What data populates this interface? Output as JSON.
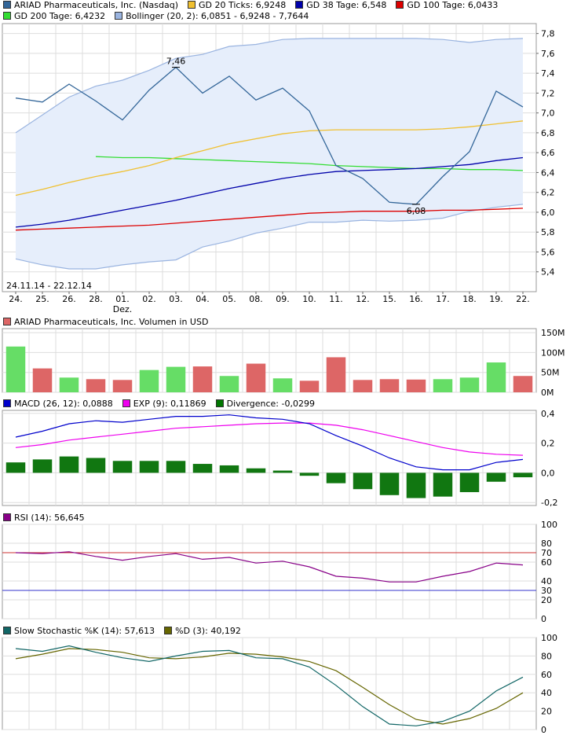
{
  "chart_data": [
    {
      "type": "line",
      "panel": "price",
      "legend": [
        {
          "label": "ARIAD Pharmaceuticals, Inc. (Nasdaq)",
          "color": "#336699"
        },
        {
          "label": "GD 20 Ticks: 6,9248",
          "color": "#f0c030"
        },
        {
          "label": "GD 38 Tage: 6,548",
          "color": "#0000aa"
        },
        {
          "label": "GD 100 Tage: 6,0433",
          "color": "#dd0000"
        },
        {
          "label": "GD 200 Tage: 6,4232",
          "color": "#33dd33"
        },
        {
          "label": "Bollinger (20, 2): 6,0851 - 6,9248 - 7,7644",
          "color": "#9ab4e0"
        }
      ],
      "x": [
        "24.",
        "25.",
        "26.",
        "28.",
        "01.",
        "02.",
        "03.",
        "04.",
        "05.",
        "08.",
        "09.",
        "10.",
        "11.",
        "12.",
        "15.",
        "16.",
        "17.",
        "18.",
        "19.",
        "22."
      ],
      "x_sublabel": {
        "index": 4,
        "text": "Dez."
      },
      "date_range": "24.11.14 - 22.12.14",
      "ylim": [
        5.2,
        7.9
      ],
      "yticks": [
        "7,8",
        "7,6",
        "7,4",
        "7,2",
        "7,0",
        "6,8",
        "6,6",
        "6,4",
        "6,2",
        "6,0",
        "5,8",
        "5,6",
        "5,4"
      ],
      "ytick_values": [
        7.8,
        7.6,
        7.4,
        7.2,
        7.0,
        6.8,
        6.6,
        6.4,
        6.2,
        6.0,
        5.8,
        5.6,
        5.4
      ],
      "series": [
        {
          "name": "ARIAD Pharmaceuticals, Inc. (Nasdaq)",
          "color": "#336699",
          "values": [
            7.15,
            7.11,
            7.29,
            7.12,
            6.93,
            7.23,
            7.46,
            7.2,
            7.37,
            7.13,
            7.25,
            7.02,
            6.47,
            6.34,
            6.1,
            6.08,
            6.36,
            6.61,
            7.22,
            7.06
          ]
        },
        {
          "name": "GD 20 Ticks: 6,9248",
          "color": "#f0c030",
          "values": [
            6.17,
            6.23,
            6.3,
            6.36,
            6.41,
            6.47,
            6.55,
            6.62,
            6.69,
            6.74,
            6.79,
            6.82,
            6.83,
            6.83,
            6.83,
            6.83,
            6.84,
            6.86,
            6.89,
            6.92
          ]
        },
        {
          "name": "GD 38 Tage: 6,548",
          "color": "#0000aa",
          "values": [
            5.85,
            5.88,
            5.92,
            5.97,
            6.02,
            6.07,
            6.12,
            6.18,
            6.24,
            6.29,
            6.34,
            6.38,
            6.41,
            6.42,
            6.43,
            6.44,
            6.46,
            6.48,
            6.52,
            6.55
          ]
        },
        {
          "name": "GD 100 Tage: 6,0433",
          "color": "#dd0000",
          "values": [
            5.82,
            5.83,
            5.84,
            5.85,
            5.86,
            5.87,
            5.89,
            5.91,
            5.93,
            5.95,
            5.97,
            5.99,
            6.0,
            6.01,
            6.01,
            6.01,
            6.02,
            6.02,
            6.03,
            6.04
          ]
        },
        {
          "name": "GD 200 Tage: 6,4232",
          "color": "#33dd33",
          "start_index": 3,
          "values": [
            null,
            null,
            null,
            6.56,
            6.55,
            6.55,
            6.54,
            6.53,
            6.52,
            6.51,
            6.5,
            6.49,
            6.47,
            6.46,
            6.45,
            6.44,
            6.44,
            6.43,
            6.43,
            6.42
          ]
        },
        {
          "name": "Bollinger upper",
          "color": "#9ab4e0",
          "values": [
            6.8,
            6.98,
            7.16,
            7.27,
            7.33,
            7.43,
            7.55,
            7.59,
            7.67,
            7.69,
            7.74,
            7.75,
            7.75,
            7.75,
            7.75,
            7.75,
            7.74,
            7.71,
            7.74,
            7.75
          ]
        },
        {
          "name": "Bollinger lower",
          "color": "#9ab4e0",
          "values": [
            5.53,
            5.47,
            5.43,
            5.43,
            5.47,
            5.5,
            5.52,
            5.65,
            5.71,
            5.79,
            5.84,
            5.9,
            5.9,
            5.92,
            5.91,
            5.92,
            5.94,
            6.01,
            6.05,
            6.08
          ]
        }
      ],
      "annotations": [
        {
          "text": "7,46",
          "index": 6,
          "value": 7.46,
          "position": "above"
        },
        {
          "text": "6,08",
          "index": 15,
          "value": 6.08,
          "position": "below"
        }
      ]
    },
    {
      "type": "bar",
      "panel": "volume",
      "legend": [
        {
          "label": "ARIAD Pharmaceuticals, Inc. Volumen in USD",
          "color": "#dd6666"
        }
      ],
      "ylim": [
        0,
        160
      ],
      "yticks": [
        "150M",
        "100M",
        "50M",
        "0M"
      ],
      "ytick_values": [
        150,
        100,
        50,
        0
      ],
      "values": [
        115,
        60,
        37,
        33,
        31,
        56,
        64,
        65,
        41,
        72,
        35,
        29,
        88,
        31,
        33,
        32,
        33,
        37,
        75,
        41
      ],
      "up": [
        true,
        false,
        true,
        false,
        false,
        true,
        true,
        false,
        true,
        false,
        true,
        false,
        false,
        false,
        false,
        false,
        true,
        true,
        true,
        false
      ],
      "colors": {
        "up": "#66dd66",
        "down": "#dd6666"
      }
    },
    {
      "type": "line",
      "panel": "macd",
      "legend": [
        {
          "label": "MACD (26, 12): 0,0888",
          "color": "#0000cc"
        },
        {
          "label": "EXP (9): 0,11869",
          "color": "#ee00ee"
        },
        {
          "label": "Divergence: -0,0299",
          "color": "#007700"
        }
      ],
      "ylim": [
        -0.22,
        0.42
      ],
      "yticks": [
        "0,4",
        "0,2",
        "0,0",
        "-0,2"
      ],
      "ytick_values": [
        0.4,
        0.2,
        0.0,
        -0.2
      ],
      "series": [
        {
          "name": "MACD (26, 12): 0,0888",
          "color": "#0000cc",
          "values": [
            0.24,
            0.28,
            0.33,
            0.35,
            0.34,
            0.36,
            0.38,
            0.38,
            0.39,
            0.37,
            0.36,
            0.33,
            0.25,
            0.18,
            0.1,
            0.04,
            0.02,
            0.02,
            0.07,
            0.09
          ]
        },
        {
          "name": "EXP (9): 0,11869",
          "color": "#ee00ee",
          "values": [
            0.17,
            0.19,
            0.22,
            0.24,
            0.26,
            0.28,
            0.3,
            0.31,
            0.32,
            0.33,
            0.335,
            0.335,
            0.32,
            0.29,
            0.25,
            0.21,
            0.17,
            0.14,
            0.125,
            0.118
          ]
        }
      ],
      "divergence": [
        0.07,
        0.09,
        0.11,
        0.1,
        0.08,
        0.08,
        0.08,
        0.06,
        0.05,
        0.03,
        0.015,
        -0.02,
        -0.07,
        -0.11,
        -0.15,
        -0.17,
        -0.16,
        -0.13,
        -0.06,
        -0.03
      ]
    },
    {
      "type": "line",
      "panel": "rsi",
      "legend": [
        {
          "label": "RSI (14): 56,645",
          "color": "#880088"
        }
      ],
      "ylim": [
        0,
        100
      ],
      "yticks": [
        "100",
        "80",
        "70",
        "60",
        "40",
        "30",
        "20",
        "0"
      ],
      "ytick_values": [
        100,
        80,
        70,
        60,
        40,
        30,
        20,
        0
      ],
      "reference_lines": [
        {
          "value": 70,
          "color": "#cc3333"
        },
        {
          "value": 30,
          "color": "#3333cc"
        }
      ],
      "series": [
        {
          "name": "RSI (14): 56,645",
          "color": "#880088",
          "values": [
            70,
            69,
            71,
            66,
            62,
            66,
            69,
            63,
            65,
            59,
            61,
            55,
            45,
            43,
            39,
            39,
            45,
            50,
            59,
            57
          ]
        }
      ]
    },
    {
      "type": "line",
      "panel": "stochastic",
      "legend": [
        {
          "label": "Slow Stochastic %K (14): 57,613",
          "color": "#116666"
        },
        {
          "label": "%D (3): 40,192",
          "color": "#666600"
        }
      ],
      "ylim": [
        0,
        100
      ],
      "yticks": [
        "100",
        "80",
        "60",
        "40",
        "20",
        "0"
      ],
      "ytick_values": [
        100,
        80,
        60,
        40,
        20,
        0
      ],
      "series": [
        {
          "name": "Slow Stochastic %K (14): 57,613",
          "color": "#116666",
          "values": [
            88,
            85,
            91,
            84,
            78,
            74,
            80,
            85,
            86,
            78,
            77,
            68,
            48,
            25,
            6,
            4,
            9,
            20,
            42,
            57
          ]
        },
        {
          "name": "%D (3): 40,192",
          "color": "#666600",
          "values": [
            77,
            82,
            88,
            87,
            84,
            78,
            77,
            79,
            83,
            82,
            79,
            74,
            64,
            46,
            27,
            11,
            6,
            12,
            23,
            40
          ]
        }
      ]
    }
  ]
}
